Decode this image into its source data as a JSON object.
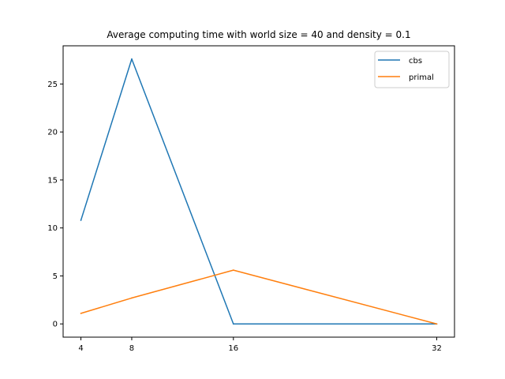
{
  "chart_data": {
    "type": "line",
    "title": "Average computing time with world size = 40 and density = 0.1",
    "xlabel": "",
    "ylabel": "",
    "x": [
      4,
      8,
      16,
      32
    ],
    "xticks": [
      "4",
      "8",
      "16",
      "32"
    ],
    "xlim": [
      2.6,
      33.4
    ],
    "yticks": [
      "0",
      "5",
      "10",
      "15",
      "20",
      "25"
    ],
    "ytick_values": [
      0,
      5,
      10,
      15,
      20,
      25
    ],
    "ylim": [
      -1.38,
      28.98
    ],
    "grid": false,
    "legend_position": "top-right",
    "series": [
      {
        "name": "cbs",
        "color": "#1f77b4",
        "values": [
          10.8,
          27.6,
          0.0,
          0.0
        ]
      },
      {
        "name": "primal",
        "color": "#ff7f0e",
        "values": [
          1.1,
          2.7,
          5.6,
          0.0
        ]
      }
    ]
  }
}
